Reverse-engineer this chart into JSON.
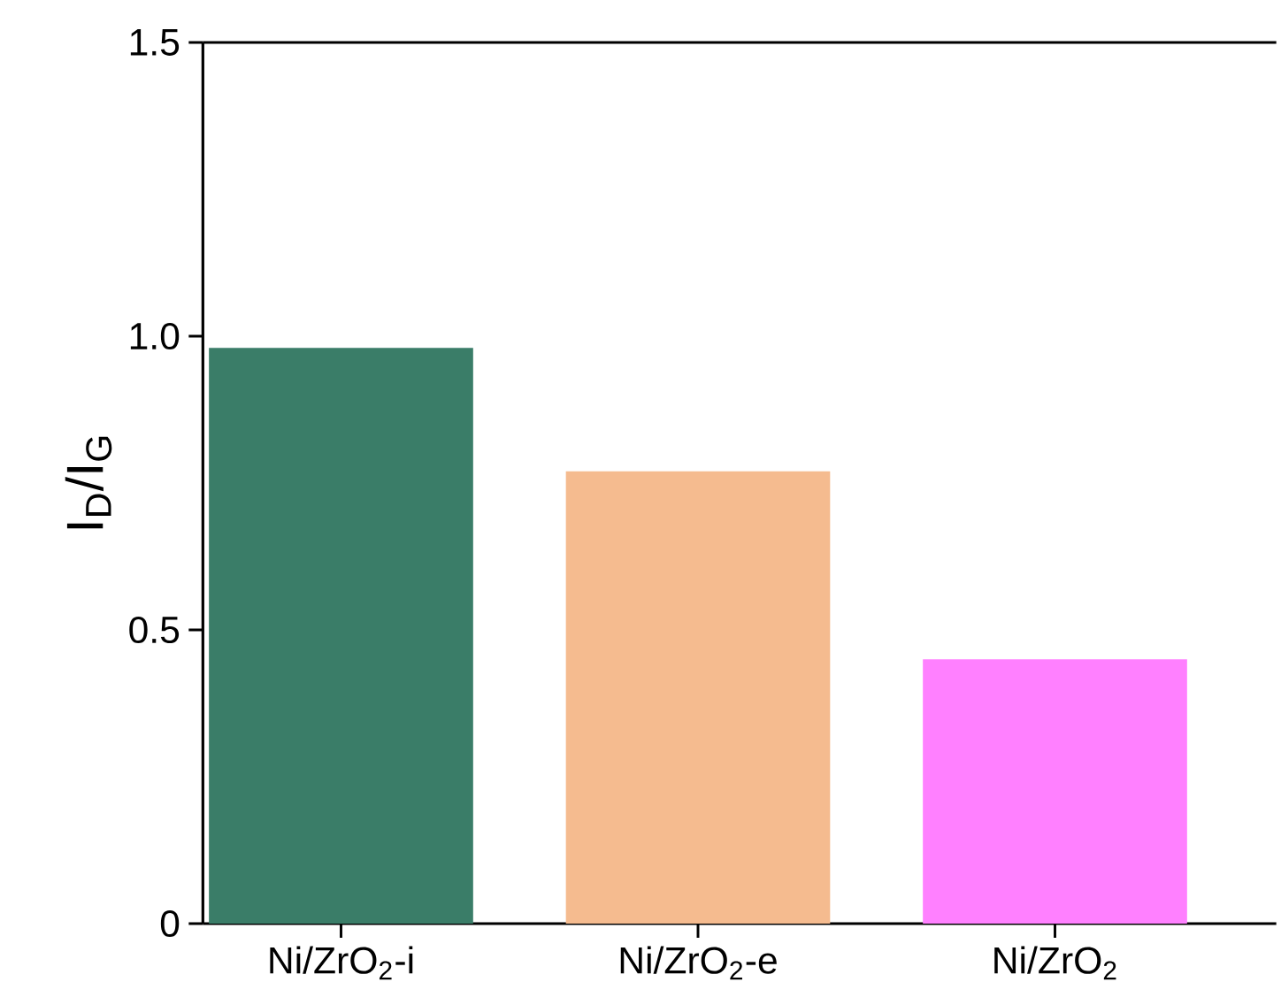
{
  "chart_data": {
    "type": "bar",
    "ylabel": "I$_{D}$/I$_{G}$",
    "categories": [
      "Ni/ZrO$_{2}$-i",
      "Ni/ZrO$_{2}$-e",
      "Ni/ZrO$_{2}$"
    ],
    "values": [
      0.98,
      0.77,
      0.45
    ],
    "colors": [
      "#3a7d68",
      "#f5bb8f",
      "#ff80ff"
    ],
    "ylim": [
      0,
      1.5
    ],
    "yticks": [
      0,
      {
        "value": 0.5,
        "label": "0.5"
      },
      {
        "value": 1.0,
        "label": "1.0"
      },
      {
        "value": 1.5,
        "label": "1.5"
      }
    ],
    "grid": false
  }
}
